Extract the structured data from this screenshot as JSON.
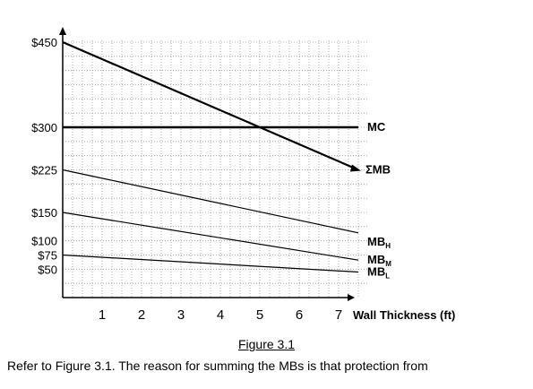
{
  "chart_data": {
    "type": "line",
    "ylim": [
      0,
      475
    ],
    "xlim": [
      0,
      7.5
    ],
    "grid": true,
    "y_ticks": [
      {
        "value": 450,
        "label": "$450"
      },
      {
        "value": 300,
        "label": "$300"
      },
      {
        "value": 225,
        "label": "$225"
      },
      {
        "value": 150,
        "label": "$150"
      },
      {
        "value": 100,
        "label": "$100"
      },
      {
        "value": 75,
        "label": "$75"
      },
      {
        "value": 50,
        "label": "$50"
      }
    ],
    "x_ticks": [
      "1",
      "2",
      "3",
      "4",
      "5",
      "6",
      "7"
    ],
    "xlabel": "Wall Thickness (ft)",
    "series": [
      {
        "label_main": "MC",
        "label_sub": "",
        "x": [
          0,
          7.5
        ],
        "y": [
          300,
          300
        ],
        "stroke": "#000000",
        "width": 2.5
      },
      {
        "label_main": "ΣMB",
        "label_sub": "",
        "x": [
          0,
          7.5
        ],
        "y": [
          450,
          225
        ],
        "stroke": "#000000",
        "width": 2.2
      },
      {
        "label_main": "MB",
        "label_sub": "H",
        "x": [
          0,
          7.5
        ],
        "y": [
          225,
          114
        ],
        "stroke": "#000000",
        "width": 1.2
      },
      {
        "label_main": "MB",
        "label_sub": "M",
        "x": [
          0,
          7.5
        ],
        "y": [
          150,
          66
        ],
        "stroke": "#000000",
        "width": 1.2
      },
      {
        "label_main": "MB",
        "label_sub": "L",
        "x": [
          0,
          7.5
        ],
        "y": [
          75,
          45
        ],
        "stroke": "#000000",
        "width": 1.2
      }
    ]
  },
  "caption": "Figure 3.1",
  "question": "Refer to Figure 3.1. The reason for summing the MBs is that protection from"
}
